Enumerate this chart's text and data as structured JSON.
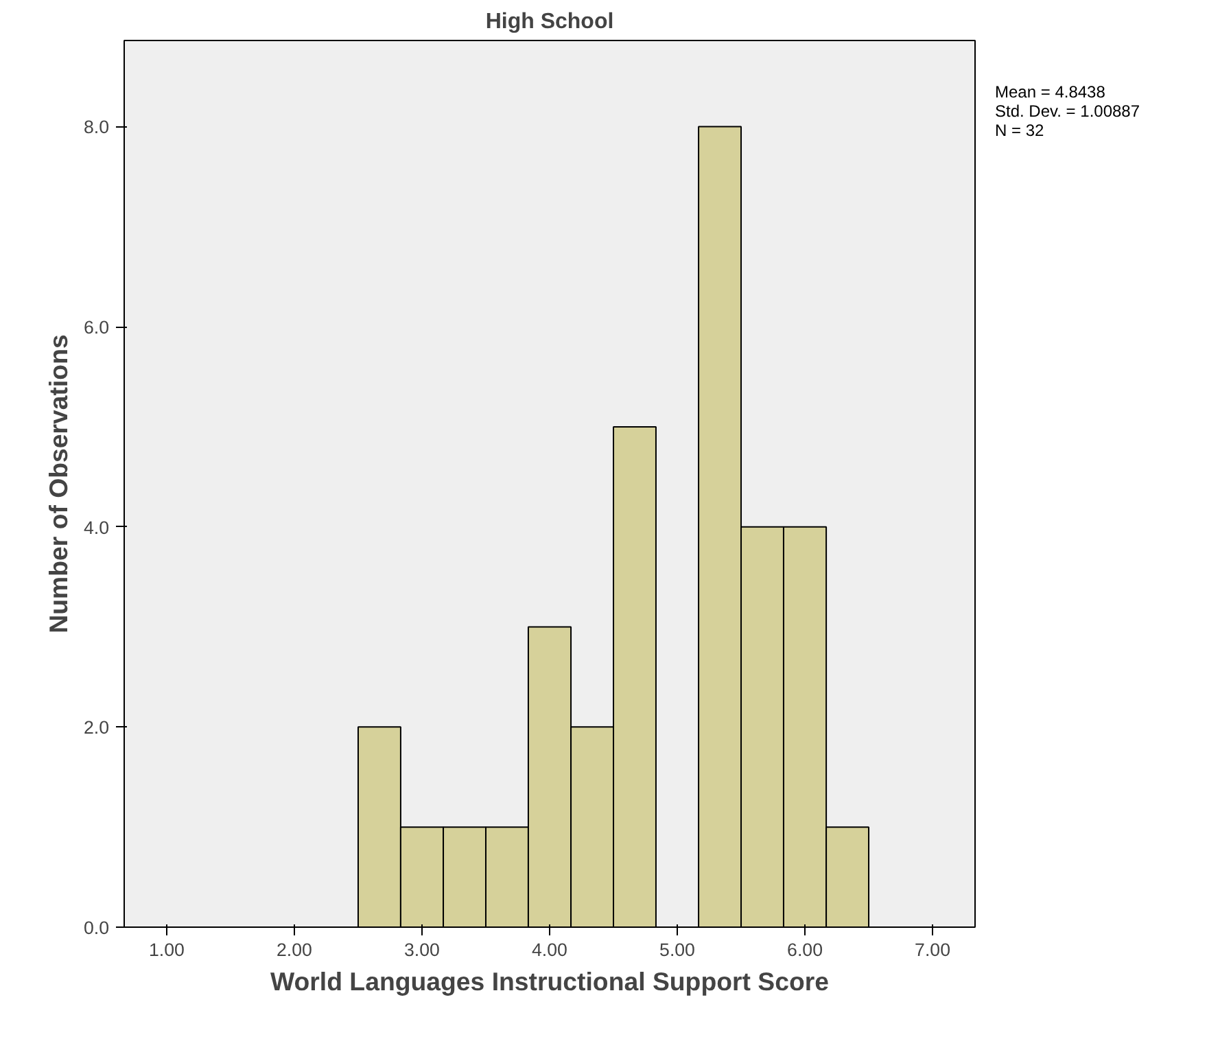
{
  "chart_data": {
    "type": "histogram",
    "title": "High School",
    "xlabel": "World Languages Instructional Support Score",
    "ylabel": "Number of Observations",
    "bins": [
      2.5,
      2.833,
      3.167,
      3.5,
      3.833,
      4.167,
      4.5,
      4.833,
      5.167,
      5.5,
      5.833,
      6.167,
      6.5
    ],
    "values": [
      2,
      1,
      1,
      1,
      3,
      2,
      5,
      0,
      8,
      4,
      4,
      1
    ],
    "color": "#d6d19a",
    "xlim": [
      0.667,
      7.333
    ],
    "ylim": [
      0,
      8.86
    ],
    "xticks": [
      {
        "value": 1,
        "label": "1.00"
      },
      {
        "value": 2,
        "label": "2.00"
      },
      {
        "value": 3,
        "label": "3.00"
      },
      {
        "value": 4,
        "label": "4.00"
      },
      {
        "value": 5,
        "label": "5.00"
      },
      {
        "value": 6,
        "label": "6.00"
      },
      {
        "value": 7,
        "label": "7.00"
      }
    ],
    "yticks": [
      {
        "value": 0,
        "label": "0.0"
      },
      {
        "value": 2,
        "label": "2.0"
      },
      {
        "value": 4,
        "label": "4.0"
      },
      {
        "value": 6,
        "label": "6.0"
      },
      {
        "value": 8,
        "label": "8.0"
      }
    ],
    "annotations": [
      "Mean = 4.8438",
      "Std. Dev. = 1.00887",
      "N = 32"
    ],
    "grid": false
  }
}
